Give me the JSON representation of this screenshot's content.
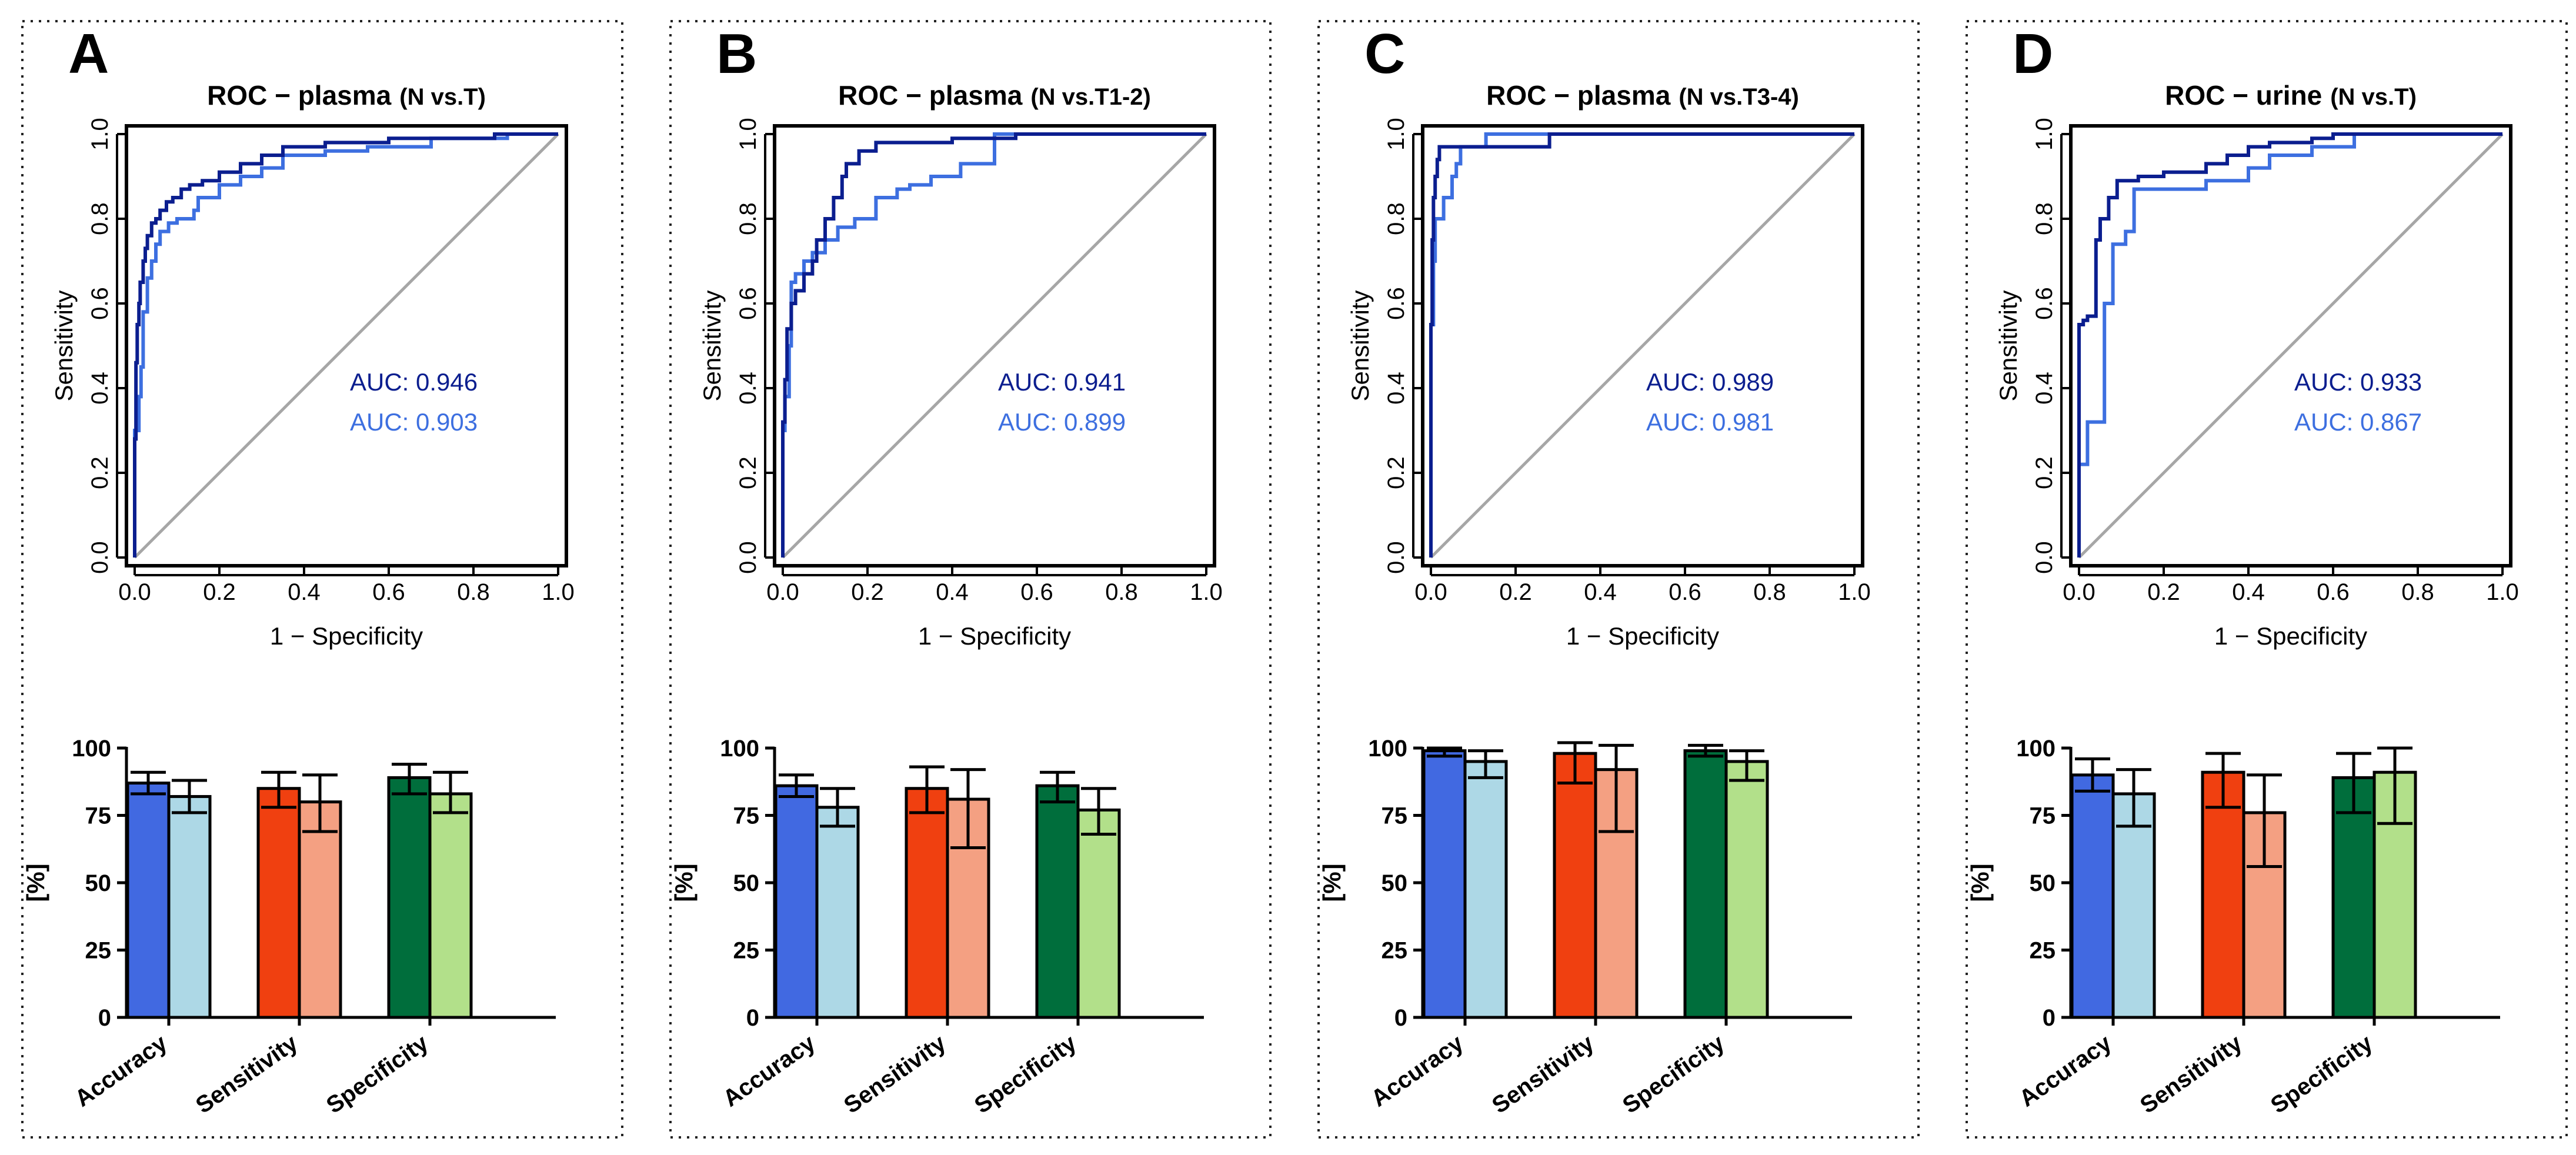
{
  "chart_data": [
    {
      "panel": "A",
      "title": "ROC − plasma",
      "subtitle": "(N vs.T)",
      "roc": {
        "type": "line",
        "xlabel": "1 − Specificity",
        "ylabel": "Sensitivity",
        "xlim": [
          0,
          1
        ],
        "ylim": [
          0,
          1
        ],
        "xticks": [
          "0.0",
          "0.2",
          "0.4",
          "0.6",
          "0.8",
          "1.0"
        ],
        "yticks": [
          "0.0",
          "0.2",
          "0.4",
          "0.6",
          "0.8",
          "1.0"
        ],
        "series": [
          {
            "name": "AUC: 0.946",
            "color": "#0b1e8f",
            "x": [
              0,
              0.003,
              0.006,
              0.01,
              0.013,
              0.02,
              0.025,
              0.03,
              0.04,
              0.05,
              0.06,
              0.075,
              0.09,
              0.11,
              0.13,
              0.16,
              0.2,
              0.25,
              0.3,
              0.35,
              0.45,
              0.6,
              0.85,
              1
            ],
            "y": [
              0,
              0.28,
              0.46,
              0.55,
              0.6,
              0.65,
              0.7,
              0.73,
              0.76,
              0.79,
              0.8,
              0.82,
              0.84,
              0.85,
              0.87,
              0.88,
              0.89,
              0.91,
              0.93,
              0.95,
              0.97,
              0.98,
              0.99,
              1
            ]
          },
          {
            "name": "AUC: 0.903",
            "color": "#3d6fe0",
            "x": [
              0,
              0.01,
              0.015,
              0.02,
              0.03,
              0.04,
              0.05,
              0.06,
              0.08,
              0.1,
              0.14,
              0.15,
              0.2,
              0.25,
              0.3,
              0.35,
              0.45,
              0.55,
              0.7,
              0.88,
              1
            ],
            "y": [
              0,
              0.3,
              0.38,
              0.45,
              0.58,
              0.66,
              0.7,
              0.74,
              0.77,
              0.79,
              0.8,
              0.82,
              0.85,
              0.88,
              0.9,
              0.92,
              0.95,
              0.96,
              0.97,
              0.99,
              1
            ]
          }
        ],
        "diagonal": true
      },
      "bars": {
        "type": "bar",
        "ylabel": "[%]",
        "ylim": [
          0,
          100
        ],
        "yticks": [
          "0",
          "25",
          "50",
          "75",
          "100"
        ],
        "categories": [
          "Accuracy",
          "Sensitivity",
          "Specificity"
        ],
        "series": [
          {
            "category": "Accuracy",
            "group": "dark",
            "value": 87,
            "err_low": 83,
            "err_high": 91,
            "color": "#4169e1"
          },
          {
            "category": "Accuracy",
            "group": "light",
            "value": 82,
            "err_low": 76,
            "err_high": 88,
            "color": "#add8e6"
          },
          {
            "category": "Sensitivity",
            "group": "dark",
            "value": 85,
            "err_low": 78,
            "err_high": 91,
            "color": "#f04010"
          },
          {
            "category": "Sensitivity",
            "group": "light",
            "value": 80,
            "err_low": 69,
            "err_high": 90,
            "color": "#f4a082"
          },
          {
            "category": "Specificity",
            "group": "dark",
            "value": 89,
            "err_low": 83,
            "err_high": 94,
            "color": "#006e3c"
          },
          {
            "category": "Specificity",
            "group": "light",
            "value": 83,
            "err_low": 76,
            "err_high": 91,
            "color": "#b2e08a"
          }
        ]
      }
    },
    {
      "panel": "B",
      "title": "ROC − plasma",
      "subtitle": "(N vs.T1-2)",
      "roc": {
        "type": "line",
        "xlabel": "1 − Specificity",
        "ylabel": "Sensitivity",
        "xlim": [
          0,
          1
        ],
        "ylim": [
          0,
          1
        ],
        "xticks": [
          "0.0",
          "0.2",
          "0.4",
          "0.6",
          "0.8",
          "1.0"
        ],
        "yticks": [
          "0.0",
          "0.2",
          "0.4",
          "0.6",
          "0.8",
          "1.0"
        ],
        "series": [
          {
            "name": "AUC: 0.941",
            "color": "#0b1e8f",
            "x": [
              0,
              0.005,
              0.01,
              0.02,
              0.03,
              0.05,
              0.07,
              0.08,
              0.1,
              0.12,
              0.14,
              0.15,
              0.18,
              0.22,
              0.3,
              0.4,
              0.55,
              0.6,
              1
            ],
            "y": [
              0,
              0.32,
              0.42,
              0.54,
              0.6,
              0.63,
              0.67,
              0.7,
              0.75,
              0.8,
              0.85,
              0.9,
              0.93,
              0.96,
              0.98,
              0.98,
              0.99,
              1,
              1
            ]
          },
          {
            "name": "AUC: 0.899",
            "color": "#3d6fe0",
            "x": [
              0,
              0.005,
              0.015,
              0.02,
              0.03,
              0.05,
              0.07,
              0.1,
              0.13,
              0.17,
              0.22,
              0.27,
              0.3,
              0.35,
              0.42,
              0.5,
              0.64,
              1
            ],
            "y": [
              0,
              0.3,
              0.38,
              0.5,
              0.65,
              0.67,
              0.7,
              0.72,
              0.75,
              0.78,
              0.8,
              0.85,
              0.87,
              0.88,
              0.9,
              0.93,
              1,
              1
            ]
          }
        ],
        "diagonal": true
      },
      "bars": {
        "type": "bar",
        "ylabel": "[%]",
        "ylim": [
          0,
          100
        ],
        "yticks": [
          "0",
          "25",
          "50",
          "75",
          "100"
        ],
        "categories": [
          "Accuracy",
          "Sensitivity",
          "Specificity"
        ],
        "series": [
          {
            "category": "Accuracy",
            "group": "dark",
            "value": 86,
            "err_low": 82,
            "err_high": 90,
            "color": "#4169e1"
          },
          {
            "category": "Accuracy",
            "group": "light",
            "value": 78,
            "err_low": 71,
            "err_high": 85,
            "color": "#add8e6"
          },
          {
            "category": "Sensitivity",
            "group": "dark",
            "value": 85,
            "err_low": 76,
            "err_high": 93,
            "color": "#f04010"
          },
          {
            "category": "Sensitivity",
            "group": "light",
            "value": 81,
            "err_low": 63,
            "err_high": 92,
            "color": "#f4a082"
          },
          {
            "category": "Specificity",
            "group": "dark",
            "value": 86,
            "err_low": 80,
            "err_high": 91,
            "color": "#006e3c"
          },
          {
            "category": "Specificity",
            "group": "light",
            "value": 77,
            "err_low": 68,
            "err_high": 85,
            "color": "#b2e08a"
          }
        ]
      }
    },
    {
      "panel": "C",
      "title": "ROC − plasma",
      "subtitle": "(N vs.T3-4)",
      "roc": {
        "type": "line",
        "xlabel": "1 − Specificity",
        "ylabel": "Sensitivity",
        "xlim": [
          0,
          1
        ],
        "ylim": [
          0,
          1
        ],
        "xticks": [
          "0.0",
          "0.2",
          "0.4",
          "0.6",
          "0.8",
          "1.0"
        ],
        "yticks": [
          "0.0",
          "0.2",
          "0.4",
          "0.6",
          "0.8",
          "1.0"
        ],
        "series": [
          {
            "name": "AUC: 0.989",
            "color": "#0b1e8f",
            "x": [
              0,
              0.003,
              0.006,
              0.01,
              0.015,
              0.02,
              0.03,
              0.08,
              0.18,
              0.28,
              0.29,
              1
            ],
            "y": [
              0,
              0.55,
              0.75,
              0.85,
              0.9,
              0.94,
              0.97,
              0.97,
              0.97,
              0.97,
              1,
              1
            ]
          },
          {
            "name": "AUC: 0.981",
            "color": "#3d6fe0",
            "x": [
              0,
              0.006,
              0.01,
              0.015,
              0.03,
              0.05,
              0.06,
              0.07,
              0.09,
              0.13,
              0.14,
              1
            ],
            "y": [
              0,
              0.55,
              0.7,
              0.8,
              0.8,
              0.85,
              0.9,
              0.93,
              0.97,
              0.97,
              1,
              1
            ]
          }
        ],
        "diagonal": true
      },
      "bars": {
        "type": "bar",
        "ylabel": "[%]",
        "ylim": [
          0,
          100
        ],
        "yticks": [
          "0",
          "25",
          "50",
          "75",
          "100"
        ],
        "categories": [
          "Accuracy",
          "Sensitivity",
          "Specificity"
        ],
        "series": [
          {
            "category": "Accuracy",
            "group": "dark",
            "value": 99,
            "err_low": 97,
            "err_high": 100,
            "color": "#4169e1"
          },
          {
            "category": "Accuracy",
            "group": "light",
            "value": 95,
            "err_low": 89,
            "err_high": 99,
            "color": "#add8e6"
          },
          {
            "category": "Sensitivity",
            "group": "dark",
            "value": 98,
            "err_low": 87,
            "err_high": 102,
            "color": "#f04010"
          },
          {
            "category": "Sensitivity",
            "group": "light",
            "value": 92,
            "err_low": 69,
            "err_high": 101,
            "color": "#f4a082"
          },
          {
            "category": "Specificity",
            "group": "dark",
            "value": 99,
            "err_low": 97,
            "err_high": 101,
            "color": "#006e3c"
          },
          {
            "category": "Specificity",
            "group": "light",
            "value": 95,
            "err_low": 88,
            "err_high": 99,
            "color": "#b2e08a"
          }
        ]
      }
    },
    {
      "panel": "D",
      "title": "ROC − urine",
      "subtitle": "(N vs.T)",
      "roc": {
        "type": "line",
        "xlabel": "1 − Specificity",
        "ylabel": "Sensitivity",
        "xlim": [
          0,
          1
        ],
        "ylim": [
          0,
          1
        ],
        "xticks": [
          "0.0",
          "0.2",
          "0.4",
          "0.6",
          "0.8",
          "1.0"
        ],
        "yticks": [
          "0.0",
          "0.2",
          "0.4",
          "0.6",
          "0.8",
          "1.0"
        ],
        "series": [
          {
            "name": "AUC: 0.933",
            "color": "#0b1e8f",
            "x": [
              0,
              0.01,
              0.02,
              0.04,
              0.05,
              0.07,
              0.09,
              0.14,
              0.2,
              0.3,
              0.35,
              0.4,
              0.45,
              0.55,
              0.6,
              0.7,
              1
            ],
            "y": [
              0,
              0.55,
              0.56,
              0.57,
              0.75,
              0.8,
              0.85,
              0.89,
              0.9,
              0.91,
              0.93,
              0.95,
              0.97,
              0.98,
              0.99,
              1,
              1
            ]
          },
          {
            "name": "AUC: 0.867",
            "color": "#3d6fe0",
            "x": [
              0,
              0.01,
              0.02,
              0.05,
              0.06,
              0.08,
              0.11,
              0.13,
              0.2,
              0.3,
              0.4,
              0.45,
              0.55,
              0.65,
              0.7,
              1
            ],
            "y": [
              0,
              0.22,
              0.22,
              0.32,
              0.32,
              0.6,
              0.74,
              0.77,
              0.87,
              0.87,
              0.89,
              0.92,
              0.95,
              0.97,
              1,
              1
            ]
          }
        ],
        "diagonal": true
      },
      "bars": {
        "type": "bar",
        "ylabel": "[%]",
        "ylim": [
          0,
          100
        ],
        "yticks": [
          "0",
          "25",
          "50",
          "75",
          "100"
        ],
        "categories": [
          "Accuracy",
          "Sensitivity",
          "Specificity"
        ],
        "series": [
          {
            "category": "Accuracy",
            "group": "dark",
            "value": 90,
            "err_low": 84,
            "err_high": 96,
            "color": "#4169e1"
          },
          {
            "category": "Accuracy",
            "group": "light",
            "value": 83,
            "err_low": 71,
            "err_high": 92,
            "color": "#add8e6"
          },
          {
            "category": "Sensitivity",
            "group": "dark",
            "value": 91,
            "err_low": 78,
            "err_high": 98,
            "color": "#f04010"
          },
          {
            "category": "Sensitivity",
            "group": "light",
            "value": 76,
            "err_low": 56,
            "err_high": 90,
            "color": "#f4a082"
          },
          {
            "category": "Specificity",
            "group": "dark",
            "value": 89,
            "err_low": 76,
            "err_high": 98,
            "color": "#006e3c"
          },
          {
            "category": "Specificity",
            "group": "light",
            "value": 91,
            "err_low": 72,
            "err_high": 100,
            "color": "#b2e08a"
          }
        ]
      }
    }
  ]
}
